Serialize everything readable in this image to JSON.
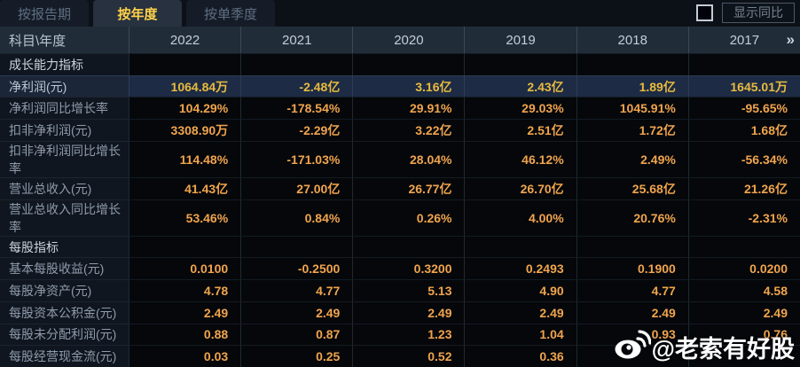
{
  "tabs": [
    {
      "label": "按报告期",
      "active": false
    },
    {
      "label": "按年度",
      "active": true
    },
    {
      "label": "按单季度",
      "active": false
    }
  ],
  "controls": {
    "compare_label": "显示同比",
    "compare_checkbox_checked": false
  },
  "table": {
    "corner_header": "科目\\年度",
    "year_columns": [
      "2022",
      "2021",
      "2020",
      "2019",
      "2018",
      "2017"
    ],
    "more_columns_glyph": "»",
    "rows": [
      {
        "type": "section",
        "label": "成长能力指标",
        "values": [
          "",
          "",
          "",
          "",
          "",
          ""
        ]
      },
      {
        "type": "highlight",
        "label": "净利润(元)",
        "values": [
          "1064.84万",
          "-2.48亿",
          "3.16亿",
          "2.43亿",
          "1.89亿",
          "1645.01万"
        ]
      },
      {
        "type": "data",
        "label": "净利润同比增长率",
        "values": [
          "104.29%",
          "-178.54%",
          "29.91%",
          "29.03%",
          "1045.91%",
          "-95.65%"
        ]
      },
      {
        "type": "data",
        "label": "扣非净利润(元)",
        "values": [
          "3308.90万",
          "-2.29亿",
          "3.22亿",
          "2.51亿",
          "1.72亿",
          "1.68亿"
        ]
      },
      {
        "type": "data",
        "label": "扣非净利润同比增长率",
        "values": [
          "114.48%",
          "-171.03%",
          "28.04%",
          "46.12%",
          "2.49%",
          "-56.34%"
        ]
      },
      {
        "type": "data",
        "label": "营业总收入(元)",
        "values": [
          "41.43亿",
          "27.00亿",
          "26.77亿",
          "26.70亿",
          "25.68亿",
          "21.26亿"
        ]
      },
      {
        "type": "data",
        "label": "营业总收入同比增长率",
        "values": [
          "53.46%",
          "0.84%",
          "0.26%",
          "4.00%",
          "20.76%",
          "-2.31%"
        ]
      },
      {
        "type": "section",
        "label": "每股指标",
        "values": [
          "",
          "",
          "",
          "",
          "",
          ""
        ]
      },
      {
        "type": "data",
        "label": "基本每股收益(元)",
        "values": [
          "0.0100",
          "-0.2500",
          "0.3200",
          "0.2493",
          "0.1900",
          "0.0200"
        ]
      },
      {
        "type": "data",
        "label": "每股净资产(元)",
        "values": [
          "4.78",
          "4.77",
          "5.13",
          "4.90",
          "4.77",
          "4.58"
        ]
      },
      {
        "type": "data",
        "label": "每股资本公积金(元)",
        "values": [
          "2.49",
          "2.49",
          "2.49",
          "2.49",
          "2.49",
          "2.49"
        ]
      },
      {
        "type": "data",
        "label": "每股未分配利润(元)",
        "values": [
          "0.88",
          "0.87",
          "1.23",
          "1.04",
          "0.93",
          "0.76"
        ]
      },
      {
        "type": "data",
        "label": "每股经营现金流(元)",
        "values": [
          "0.03",
          "0.25",
          "0.52",
          "0.36",
          "",
          ""
        ]
      }
    ]
  },
  "watermark": {
    "text": "@老索有好股"
  },
  "colors": {
    "active_tab_text": "#ffd24a",
    "value_orange": "#f0a44e",
    "highlight_value_gold": "#e8bb3e",
    "highlight_row_bg": "#1d2b45",
    "header_row_bg": "#212c39",
    "label_column_bg": "#10161f",
    "page_bg": "#05070a"
  }
}
